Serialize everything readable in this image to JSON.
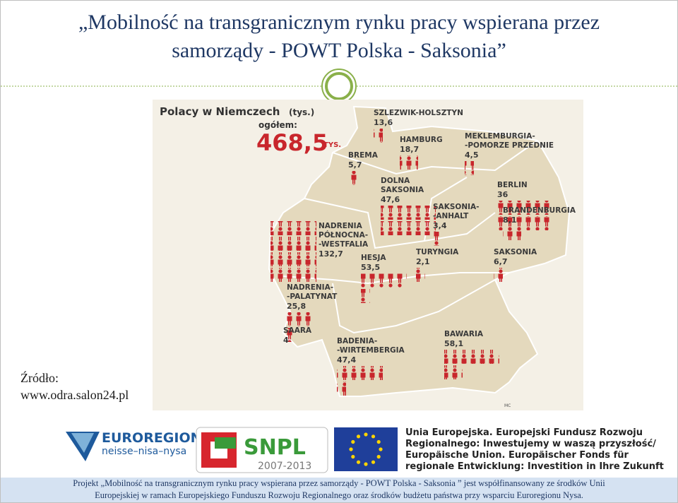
{
  "header": {
    "title_lines": [
      "„Mobilność na transgranicznym rynku pracy wspierana przez",
      "samorządy -  POWT Polska - Saksonia”"
    ]
  },
  "map": {
    "title": "Polacy w Niemczech",
    "unit": "(tys.)",
    "total_label": "ogółem:",
    "total": "468,5",
    "total_unit": "TYS.",
    "credit": "MC",
    "regions": [
      {
        "name_lines": [
          "SZLEZWIK-HOLSZTYN"
        ],
        "value": "13,6"
      },
      {
        "name_lines": [
          "HAMBURG"
        ],
        "value": "18,7"
      },
      {
        "name_lines": [
          "MEKLEMBURGIA-",
          "-POMORZE PRZEDNIE"
        ],
        "value": "4,5"
      },
      {
        "name_lines": [
          "BREMA"
        ],
        "value": "5,7"
      },
      {
        "name_lines": [
          "DOLNA",
          "SAKSONIA"
        ],
        "value": "47,6"
      },
      {
        "name_lines": [
          "BERLIN"
        ],
        "value": "36"
      },
      {
        "name_lines": [
          "BRANDENBURGIA"
        ],
        "value": "8,1"
      },
      {
        "name_lines": [
          "SAKSONIA-",
          "-ANHALT"
        ],
        "value": "3,4"
      },
      {
        "name_lines": [
          "NADRENIA",
          "PÓŁNOCNA-",
          "-WESTFALIA"
        ],
        "value": "132,7"
      },
      {
        "name_lines": [
          "TURYNGIA"
        ],
        "value": "2,1"
      },
      {
        "name_lines": [
          "SAKSONIA"
        ],
        "value": "6,7"
      },
      {
        "name_lines": [
          "HESJA"
        ],
        "value": "53,5"
      },
      {
        "name_lines": [
          "NADRENIA-",
          "-PALATYNAT"
        ],
        "value": "25,8"
      },
      {
        "name_lines": [
          "SAARA"
        ],
        "value": "4"
      },
      {
        "name_lines": [
          "BAWARIA"
        ],
        "value": "58,1"
      },
      {
        "name_lines": [
          "BADENIA-",
          "-WIRTEMBERGIA"
        ],
        "value": "47,4"
      }
    ]
  },
  "source": {
    "label": "Źródło:",
    "url": "www.odra.salon24.pl"
  },
  "logos": {
    "euroregion": {
      "name": "EUROREGION",
      "tagline": "neisse–nisa–nysa"
    },
    "snpl": {
      "name": "SNPL",
      "years": "2007-2013"
    },
    "eu_lines": [
      "Unia Europejska. Europejski Fundusz Rozwoju",
      "Regionalnego: Inwestujemy w waszą przyszłość/",
      "Europäische Union. Europäischer Fonds für",
      "regionale Entwicklung: Investition in Ihre Zukunft"
    ]
  },
  "footer": {
    "lines": [
      "Projekt „Mobilność na transgranicznym rynku pracy wspierana przez samorządy - POWT Polska - Saksonia ” jest współfinansowany ze środków Unii",
      "Europejskiej w ramach Europejskiego Funduszu Rozwoju Regionalnego oraz środków budżetu państwa  przy wsparciu Euroregionu Nysa."
    ]
  }
}
